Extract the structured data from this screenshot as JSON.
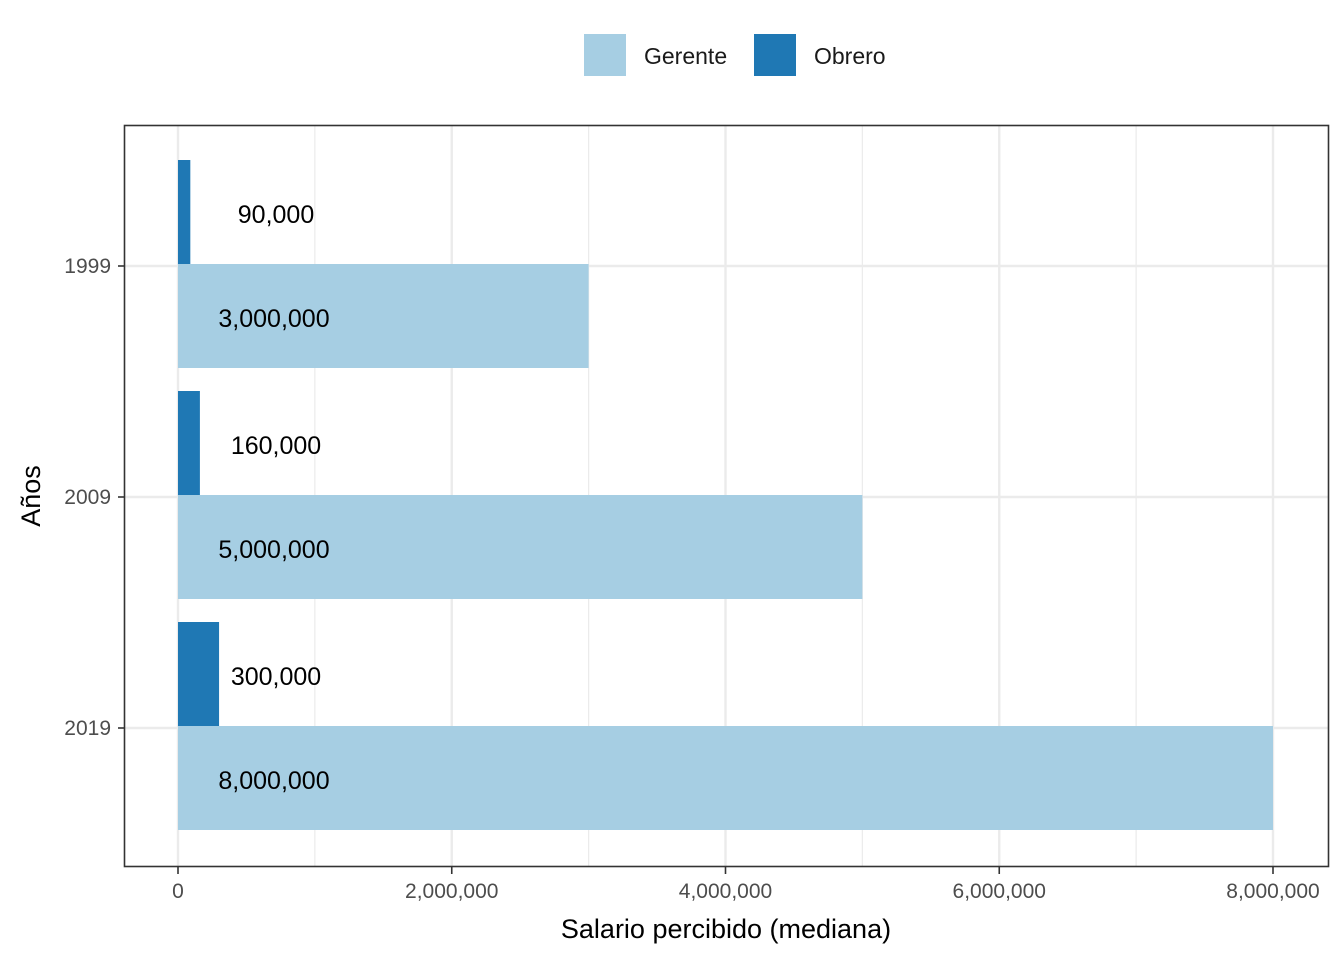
{
  "chart_data": {
    "type": "bar",
    "orientation": "horizontal",
    "categories": [
      "1999",
      "2009",
      "2019"
    ],
    "series": [
      {
        "name": "Gerente",
        "color": "#a6cee3",
        "values": [
          3000000,
          5000000,
          8000000
        ],
        "labels": [
          "3,000,000",
          "5,000,000",
          "8,000,000"
        ]
      },
      {
        "name": "Obrero",
        "color": "#1f78b4",
        "values": [
          90000,
          160000,
          300000
        ],
        "labels": [
          "90,000",
          "160,000",
          "300,000"
        ]
      }
    ],
    "xlabel": "Salario percibido (mediana)",
    "ylabel": "Años",
    "xlim": [
      -400000,
      8200000
    ],
    "xticks": [
      0,
      2000000,
      4000000,
      6000000,
      8000000
    ],
    "xtick_labels": [
      "0",
      "2,000,000",
      "4,000,000",
      "6,000,000",
      "8,000,000"
    ],
    "grid": true,
    "legend_position": "top"
  }
}
